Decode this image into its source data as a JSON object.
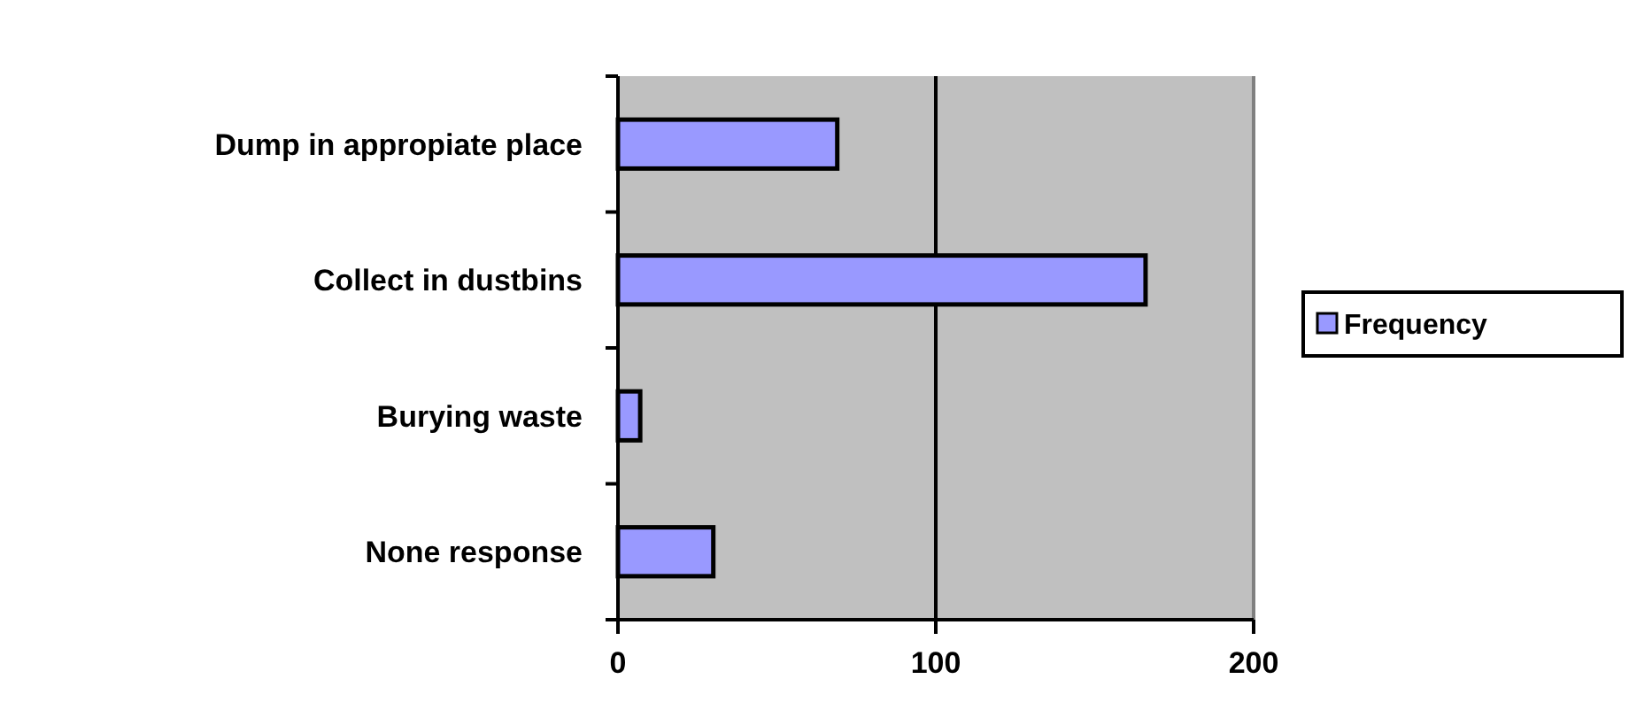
{
  "chart_data": {
    "type": "bar",
    "orientation": "horizontal",
    "categories": [
      "Dump in appropiate place",
      "Collect in dustbins",
      "Burying waste",
      "None response"
    ],
    "series": [
      {
        "name": "Frequency",
        "color": "#9999ff",
        "values": [
          69,
          166,
          7,
          30
        ]
      }
    ],
    "xlim": [
      0,
      200
    ],
    "xticks": [
      0,
      100,
      200
    ],
    "grid": "x",
    "legend": "right"
  }
}
